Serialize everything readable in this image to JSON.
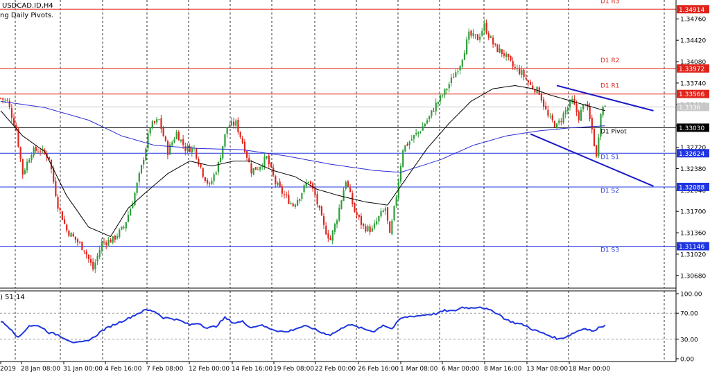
{
  "symbol_title": "USDCAD.ID,H4",
  "indicator_name": "ng Daily Pivots.",
  "oscillator_label": ") 51.14",
  "colors": {
    "bull": "#2e9e3a",
    "bear": "#e0241c",
    "resistance": "#e0241c",
    "support": "#1f35e0",
    "pivot": "#000000",
    "ma_fast": "#000000",
    "ma_slow": "#2b2bd6",
    "oscillator": "#1f35e0",
    "channel": "#1a1ac8"
  },
  "chart_data": [
    {
      "type": "candlestick",
      "title": "USDCAD.ID,H4",
      "ylim": [
        1.3048,
        1.3506
      ],
      "y_ticks": [
        "1.34760",
        "1.34420",
        "1.34080",
        "1.33740",
        "1.33400",
        "1.33060",
        "1.32720",
        "1.32380",
        "1.32040",
        "1.31700",
        "1.31360",
        "1.31020",
        "1.30680"
      ],
      "x_ticks": [
        "2019",
        "28 Jan 08:00",
        "31 Jan 00:00",
        "4 Feb 16:00",
        "7 Feb 08:00",
        "12 Feb 00:00",
        "14 Feb 16:00",
        "19 Feb 08:00",
        "22 Feb 00:00",
        "26 Feb 16:00",
        "1 Mar 08:00",
        "6 Mar 00:00",
        "8 Mar 16:00",
        "13 Mar 08:00",
        "18 Mar 00:00"
      ],
      "current_price": "1.3336",
      "pivot_levels": [
        {
          "name": "D1 R3",
          "value": 1.34914,
          "label": "1.34914",
          "kind": "resistance"
        },
        {
          "name": "D1 R2",
          "value": 1.33972,
          "label": "1.33972",
          "kind": "resistance"
        },
        {
          "name": "D1 R1",
          "value": 1.33566,
          "label": "1.33566",
          "kind": "resistance"
        },
        {
          "name": "D1 Pivot",
          "value": 1.3303,
          "label": "1.33030",
          "kind": "pivot"
        },
        {
          "name": "D1 S1",
          "value": 1.32624,
          "label": "1.32624",
          "kind": "support"
        },
        {
          "name": "D1 S2",
          "value": 1.32088,
          "label": "1.32088",
          "kind": "support"
        },
        {
          "name": "D1 S3",
          "value": 1.31146,
          "label": "1.31146",
          "kind": "support"
        }
      ],
      "close_anchors": [
        [
          0,
          1.335
        ],
        [
          3,
          1.3345
        ],
        [
          7,
          1.33
        ],
        [
          10,
          1.323
        ],
        [
          14,
          1.3265
        ],
        [
          18,
          1.3268
        ],
        [
          22,
          1.3255
        ],
        [
          26,
          1.318
        ],
        [
          30,
          1.314
        ],
        [
          34,
          1.3125
        ],
        [
          38,
          1.311
        ],
        [
          42,
          1.3078
        ],
        [
          46,
          1.312
        ],
        [
          51,
          1.3125
        ],
        [
          56,
          1.3145
        ],
        [
          60,
          1.3185
        ],
        [
          64,
          1.324
        ],
        [
          68,
          1.3305
        ],
        [
          72,
          1.3315
        ],
        [
          76,
          1.3265
        ],
        [
          80,
          1.3295
        ],
        [
          84,
          1.327
        ],
        [
          88,
          1.327
        ],
        [
          92,
          1.323
        ],
        [
          95,
          1.321
        ],
        [
          99,
          1.3245
        ],
        [
          103,
          1.3305
        ],
        [
          107,
          1.331
        ],
        [
          111,
          1.327
        ],
        [
          114,
          1.3235
        ],
        [
          117,
          1.324
        ],
        [
          121,
          1.3255
        ],
        [
          125,
          1.3215
        ],
        [
          129,
          1.3195
        ],
        [
          133,
          1.318
        ],
        [
          136,
          1.3195
        ],
        [
          140,
          1.322
        ],
        [
          143,
          1.3195
        ],
        [
          147,
          1.3145
        ],
        [
          150,
          1.3125
        ],
        [
          153,
          1.316
        ],
        [
          157,
          1.322
        ],
        [
          161,
          1.317
        ],
        [
          165,
          1.3145
        ],
        [
          169,
          1.314
        ],
        [
          172,
          1.316
        ],
        [
          175,
          1.3175
        ],
        [
          177,
          1.313
        ],
        [
          180,
          1.3195
        ],
        [
          183,
          1.327
        ],
        [
          187,
          1.3285
        ],
        [
          191,
          1.33
        ],
        [
          195,
          1.332
        ],
        [
          198,
          1.334
        ],
        [
          202,
          1.336
        ],
        [
          206,
          1.3385
        ],
        [
          209,
          1.3405
        ],
        [
          213,
          1.345
        ],
        [
          217,
          1.3445
        ],
        [
          220,
          1.3465
        ],
        [
          222,
          1.345
        ],
        [
          225,
          1.343
        ],
        [
          229,
          1.342
        ],
        [
          233,
          1.34
        ],
        [
          237,
          1.339
        ],
        [
          241,
          1.337
        ],
        [
          245,
          1.336
        ],
        [
          249,
          1.332
        ],
        [
          253,
          1.3305
        ],
        [
          257,
          1.333
        ],
        [
          260,
          1.3345
        ],
        [
          263,
          1.332
        ],
        [
          266,
          1.3345
        ],
        [
          269,
          1.33
        ],
        [
          271,
          1.3255
        ],
        [
          273,
          1.333
        ],
        [
          275,
          1.334
        ]
      ],
      "ma_fast_anchors": [
        [
          0,
          1.333
        ],
        [
          10,
          1.329
        ],
        [
          20,
          1.3265
        ],
        [
          30,
          1.3195
        ],
        [
          40,
          1.3145
        ],
        [
          50,
          1.313
        ],
        [
          58,
          1.3175
        ],
        [
          66,
          1.32
        ],
        [
          76,
          1.323
        ],
        [
          86,
          1.325
        ],
        [
          96,
          1.3242
        ],
        [
          106,
          1.325
        ],
        [
          114,
          1.325
        ],
        [
          124,
          1.3235
        ],
        [
          134,
          1.3225
        ],
        [
          144,
          1.3205
        ],
        [
          154,
          1.3195
        ],
        [
          166,
          1.3185
        ],
        [
          176,
          1.318
        ],
        [
          184,
          1.322
        ],
        [
          194,
          1.327
        ],
        [
          204,
          1.331
        ],
        [
          214,
          1.3345
        ],
        [
          224,
          1.3365
        ],
        [
          234,
          1.337
        ],
        [
          242,
          1.3365
        ],
        [
          250,
          1.3355
        ],
        [
          260,
          1.3345
        ],
        [
          270,
          1.3335
        ],
        [
          275,
          1.333
        ]
      ],
      "ma_slow_anchors": [
        [
          0,
          1.3345
        ],
        [
          20,
          1.3335
        ],
        [
          40,
          1.3315
        ],
        [
          55,
          1.329
        ],
        [
          70,
          1.3275
        ],
        [
          90,
          1.327
        ],
        [
          110,
          1.3268
        ],
        [
          130,
          1.3258
        ],
        [
          150,
          1.3245
        ],
        [
          170,
          1.3235
        ],
        [
          182,
          1.3232
        ],
        [
          200,
          1.3252
        ],
        [
          215,
          1.3275
        ],
        [
          230,
          1.329
        ],
        [
          245,
          1.3298
        ],
        [
          260,
          1.3303
        ],
        [
          275,
          1.3306
        ]
      ],
      "channel_upper": [
        [
          253,
          1.337
        ],
        [
          297,
          1.333
        ]
      ],
      "channel_lower": [
        [
          241,
          1.3293
        ],
        [
          297,
          1.321
        ]
      ]
    },
    {
      "type": "line",
      "title": ") 51.14",
      "ylim": [
        0,
        100
      ],
      "y_ticks": [
        "100.00",
        "70.00",
        "30.00",
        "0.00"
      ],
      "levels": [
        70,
        30
      ],
      "rsi_anchors": [
        [
          0,
          58
        ],
        [
          5,
          45
        ],
        [
          8,
          32
        ],
        [
          13,
          51
        ],
        [
          18,
          50
        ],
        [
          22,
          40
        ],
        [
          26,
          37
        ],
        [
          30,
          30
        ],
        [
          34,
          24
        ],
        [
          38,
          26
        ],
        [
          42,
          32
        ],
        [
          46,
          43
        ],
        [
          50,
          50
        ],
        [
          54,
          56
        ],
        [
          58,
          62
        ],
        [
          62,
          69
        ],
        [
          66,
          75
        ],
        [
          70,
          73
        ],
        [
          74,
          63
        ],
        [
          78,
          62
        ],
        [
          82,
          58
        ],
        [
          86,
          52
        ],
        [
          90,
          55
        ],
        [
          94,
          47
        ],
        [
          98,
          50
        ],
        [
          102,
          63
        ],
        [
          106,
          55
        ],
        [
          110,
          57
        ],
        [
          114,
          48
        ],
        [
          118,
          52
        ],
        [
          122,
          47
        ],
        [
          126,
          43
        ],
        [
          130,
          41
        ],
        [
          134,
          46
        ],
        [
          138,
          50
        ],
        [
          142,
          47
        ],
        [
          146,
          40
        ],
        [
          150,
          37
        ],
        [
          154,
          44
        ],
        [
          158,
          53
        ],
        [
          162,
          49
        ],
        [
          166,
          45
        ],
        [
          170,
          42
        ],
        [
          174,
          52
        ],
        [
          178,
          46
        ],
        [
          182,
          62
        ],
        [
          186,
          65
        ],
        [
          190,
          66
        ],
        [
          194,
          68
        ],
        [
          198,
          69
        ],
        [
          202,
          74
        ],
        [
          206,
          73
        ],
        [
          210,
          79
        ],
        [
          214,
          78
        ],
        [
          218,
          80
        ],
        [
          222,
          75
        ],
        [
          226,
          70
        ],
        [
          230,
          60
        ],
        [
          234,
          55
        ],
        [
          238,
          52
        ],
        [
          242,
          45
        ],
        [
          246,
          40
        ],
        [
          250,
          35
        ],
        [
          254,
          30
        ],
        [
          258,
          35
        ],
        [
          262,
          42
        ],
        [
          266,
          47
        ],
        [
          270,
          42
        ],
        [
          273,
          50
        ],
        [
          275,
          51
        ]
      ]
    }
  ]
}
